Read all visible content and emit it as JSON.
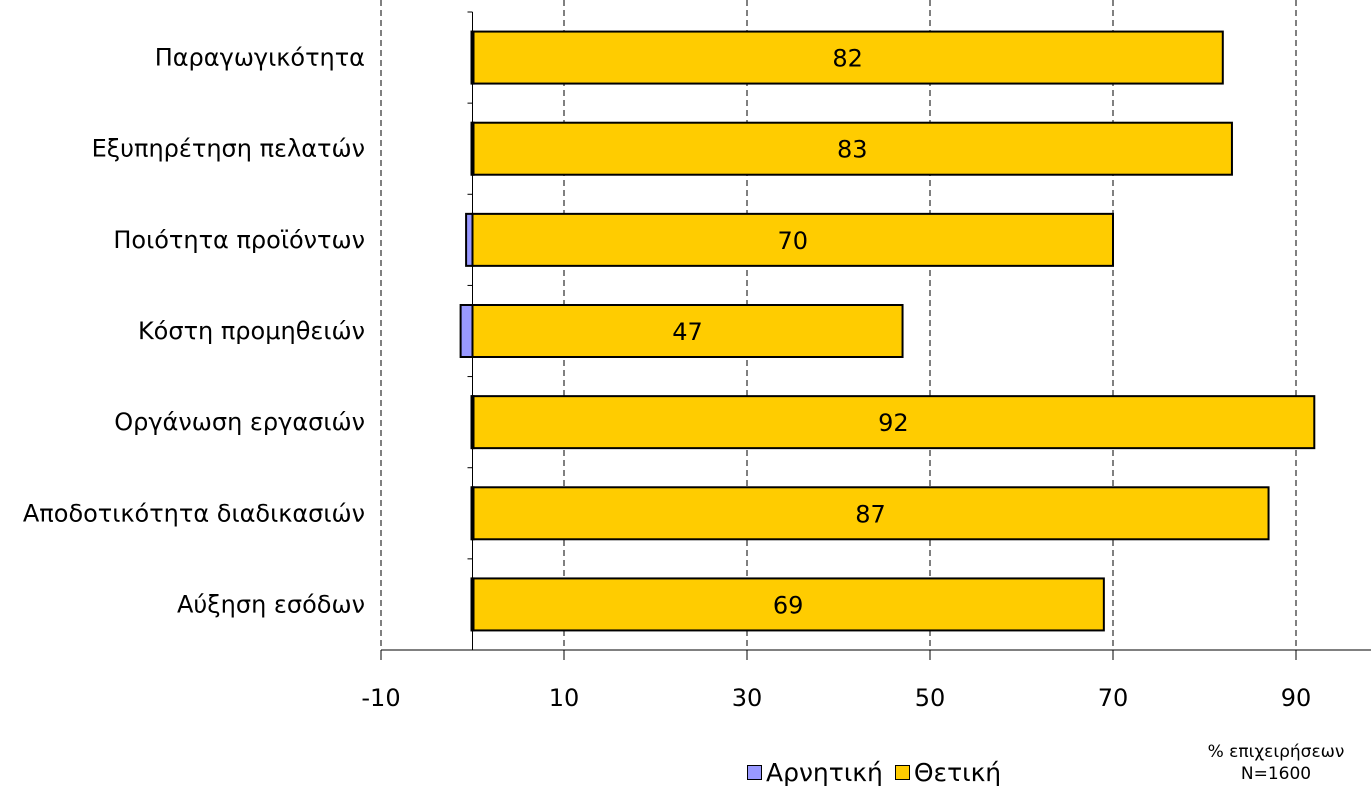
{
  "chart_data": {
    "type": "bar",
    "orientation": "horizontal",
    "stacked": true,
    "categories": [
      "Παραγωγικότητα",
      "Εξυπηρέτηση πελατών",
      "Ποιότητα προϊόντων",
      "Κόστη προμηθειών",
      "Οργάνωση εργασιών",
      "Αποδοτικότητα διαδικασιών",
      "Αύξηση εσόδων"
    ],
    "series": [
      {
        "name": "Αρνητική",
        "color": "#9999ff",
        "values": [
          0,
          0,
          -0.7,
          -1.3,
          0,
          0,
          0
        ]
      },
      {
        "name": "Θετική",
        "color": "#ffcc00",
        "values": [
          82,
          83,
          70,
          47,
          92,
          87,
          69
        ],
        "data_labels": [
          "82",
          "83",
          "70",
          "47",
          "92",
          "87",
          "69"
        ]
      }
    ],
    "xlim": [
      -10,
      100
    ],
    "xticks": [
      -10,
      10,
      30,
      50,
      70,
      90
    ],
    "xtick_labels": [
      "-10",
      "10",
      "30",
      "50",
      "70",
      "90"
    ],
    "grid": "vertical-dashed",
    "legend_position": "bottom"
  },
  "legend": {
    "negative": "Αρνητική",
    "positive": "Θετική"
  },
  "note": {
    "line1": "% επιχειρήσεων",
    "line2": "N=1600"
  }
}
